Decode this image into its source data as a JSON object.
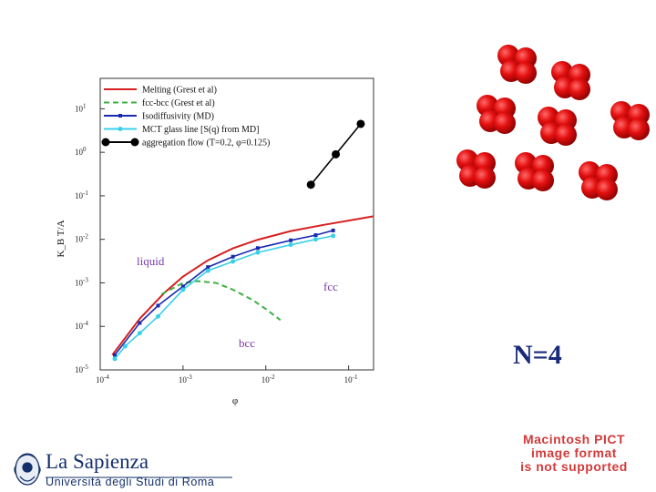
{
  "chart_data": {
    "type": "line",
    "xscale": "log",
    "yscale": "log",
    "xlim": [
      0.0001,
      0.2
    ],
    "ylim": [
      1e-05,
      50
    ],
    "xlabel": "φ",
    "ylabel": "K_B T/A",
    "x_tick_labels": [
      {
        "value": 0.0001,
        "base": "10",
        "exp": "-4"
      },
      {
        "value": 0.001,
        "base": "10",
        "exp": "-3"
      },
      {
        "value": 0.01,
        "base": "10",
        "exp": "-2"
      },
      {
        "value": 0.1,
        "base": "10",
        "exp": "-1"
      }
    ],
    "y_tick_labels": [
      {
        "value": 10,
        "base": "10",
        "exp": "1"
      },
      {
        "value": 1,
        "base": "10",
        "exp": "0"
      },
      {
        "value": 0.1,
        "base": "10",
        "exp": "-1"
      },
      {
        "value": 0.01,
        "base": "10",
        "exp": "-2"
      },
      {
        "value": 0.001,
        "base": "10",
        "exp": "-3"
      },
      {
        "value": 0.0001,
        "base": "10",
        "exp": "-4"
      },
      {
        "value": 1e-05,
        "base": "10",
        "exp": "-5"
      }
    ],
    "legend_position": "top-left",
    "series": [
      {
        "name": "Melting  (Grest et al)",
        "color": "#d62020",
        "style": "solid",
        "marker": "none",
        "x": [
          0.00014,
          0.0003,
          0.0006,
          0.001,
          0.002,
          0.004,
          0.008,
          0.02,
          0.05,
          0.1,
          0.2
        ],
        "y": [
          2.2e-05,
          0.00015,
          0.0006,
          0.0014,
          0.0033,
          0.0062,
          0.0098,
          0.0155,
          0.0215,
          0.027,
          0.034
        ]
      },
      {
        "name": "fcc-bcc (Grest et al)",
        "color": "#3cb043",
        "style": "dashed",
        "marker": "none",
        "x": [
          0.00055,
          0.001,
          0.0015,
          0.0025,
          0.004,
          0.007,
          0.01,
          0.015
        ],
        "y": [
          0.00055,
          0.001,
          0.0011,
          0.001,
          0.0007,
          0.0004,
          0.00025,
          0.00014
        ]
      },
      {
        "name": "Isodiffusivity (MD)",
        "color": "#1a2ab0",
        "style": "solid",
        "marker": "square",
        "x": [
          0.00015,
          0.0003,
          0.0005,
          0.001,
          0.002,
          0.004,
          0.008,
          0.02,
          0.04,
          0.065
        ],
        "y": [
          2.2e-05,
          0.00012,
          0.0003,
          0.00083,
          0.0023,
          0.004,
          0.0063,
          0.0095,
          0.0125,
          0.016
        ]
      },
      {
        "name": "MCT glass line [S(q) from MD]",
        "color": "#3ad0e8",
        "style": "solid",
        "marker": "circle",
        "x": [
          0.00015,
          0.0002,
          0.0003,
          0.0005,
          0.001,
          0.002,
          0.004,
          0.008,
          0.02,
          0.04,
          0.065
        ],
        "y": [
          1.8e-05,
          3.5e-05,
          7e-05,
          0.00017,
          0.0007,
          0.0019,
          0.0031,
          0.005,
          0.0075,
          0.01,
          0.012
        ]
      },
      {
        "name": "aggregation flow (T=0.2, φ=0.125)",
        "color": "#000000",
        "style": "solid",
        "marker": "big-circle",
        "x": [
          0.035,
          0.07,
          0.14
        ],
        "y": [
          0.18,
          0.9,
          4.5
        ]
      }
    ],
    "annotations": [
      {
        "text": "liquid",
        "color": "#7a3aa8"
      },
      {
        "text": "fcc",
        "color": "#7a3aa8"
      },
      {
        "text": "bcc",
        "color": "#7a3aa8"
      }
    ]
  },
  "side": {
    "n_label": "N=4",
    "pict_lines": [
      "Macintosh PICT",
      "image format",
      "is not supported"
    ],
    "sphere_color": "#e01010"
  },
  "logo": {
    "name": "La Sapienza",
    "subtitle": "Università degli Studi di Roma"
  }
}
